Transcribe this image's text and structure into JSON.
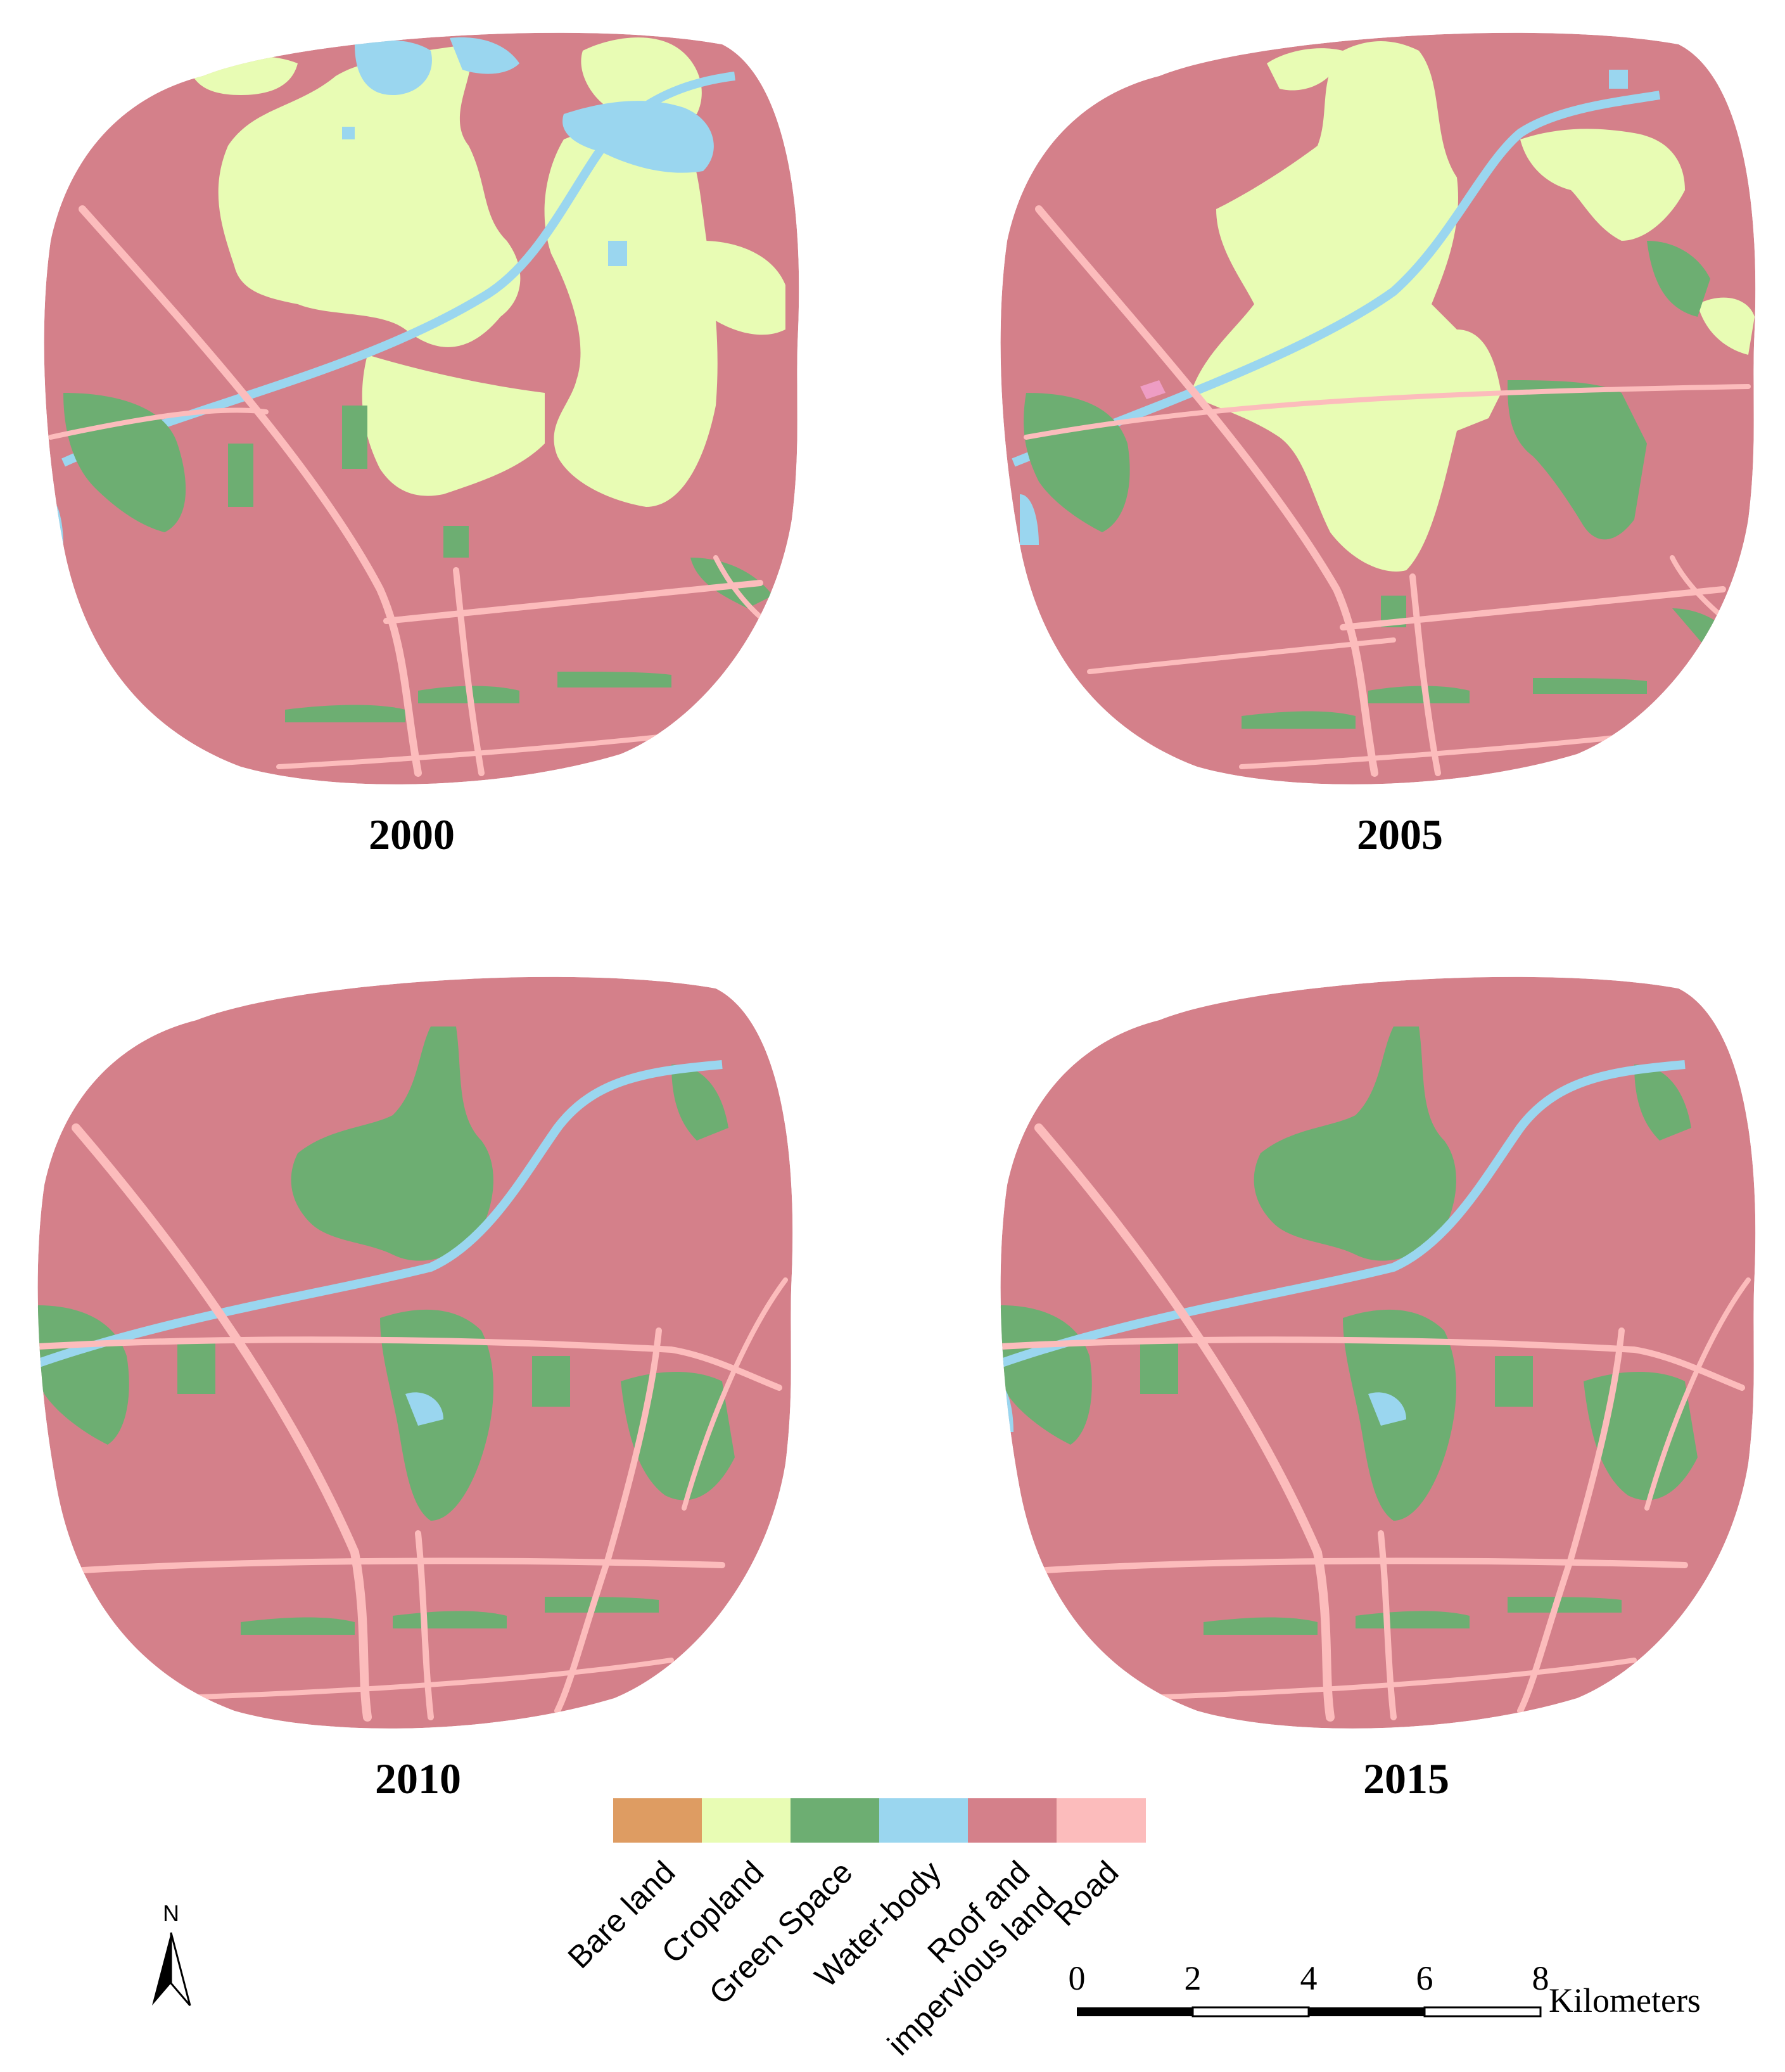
{
  "colors": {
    "bare_land": "#de9c62",
    "cropland": "#e8fcb4",
    "green_space": "#6dae72",
    "water_body": "#9ad6ef",
    "roof_impervious": "#d4808a",
    "road": "#fcbcbc",
    "other": "#ee9dc4"
  },
  "maps": [
    {
      "year": "2000"
    },
    {
      "year": "2005"
    },
    {
      "year": "2010"
    },
    {
      "year": "2015"
    }
  ],
  "legend": [
    {
      "label": "Bare land",
      "color": "#de9c62"
    },
    {
      "label": "Cropland",
      "color": "#e8fcb4"
    },
    {
      "label": "Green Space",
      "color": "#6dae72"
    },
    {
      "label": "Water-body",
      "color": "#9ad6ef"
    },
    {
      "label_lines": [
        "Roof and",
        "impervious land"
      ],
      "color": "#d4808a"
    },
    {
      "label": "Road",
      "color": "#fcbcbc"
    }
  ],
  "north_arrow": {
    "label": "N"
  },
  "scale_bar": {
    "ticks": [
      "0",
      "2",
      "4",
      "6",
      "8"
    ],
    "unit": "Kilometers"
  }
}
